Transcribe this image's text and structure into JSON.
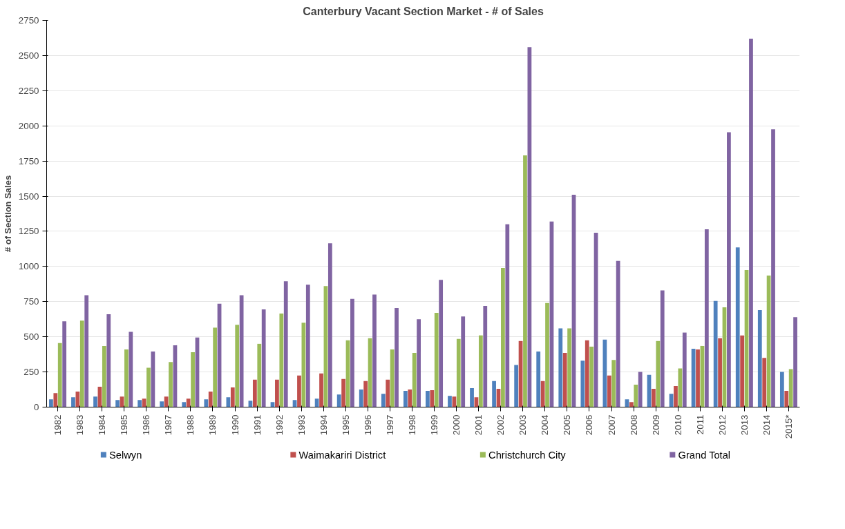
{
  "chart_data": {
    "type": "bar",
    "title": "Canterbury Vacant Section Market - # of Sales",
    "ylabel": "# of Section Sales",
    "categories": [
      "1982",
      "1983",
      "1984",
      "1985",
      "1986",
      "1987",
      "1988",
      "1989",
      "1990",
      "1991",
      "1992",
      "1993",
      "1994",
      "1995",
      "1996",
      "1997",
      "1998",
      "1999",
      "2000",
      "2001",
      "2002",
      "2003",
      "2004",
      "2005",
      "2006",
      "2007",
      "2008",
      "2009",
      "2010",
      "2011",
      "2012",
      "2013",
      "2014",
      "2015*"
    ],
    "series": [
      {
        "name": "Selwyn",
        "color": "#4f81bd",
        "values": [
          55,
          70,
          75,
          50,
          50,
          40,
          35,
          55,
          70,
          45,
          35,
          50,
          60,
          90,
          125,
          95,
          115,
          115,
          80,
          135,
          185,
          300,
          395,
          560,
          330,
          480,
          55,
          230,
          95,
          415,
          755,
          1135,
          690,
          250
        ]
      },
      {
        "name": "Waimakariri District",
        "color": "#c0504d",
        "values": [
          100,
          110,
          145,
          75,
          60,
          75,
          60,
          110,
          140,
          195,
          195,
          225,
          240,
          200,
          185,
          195,
          125,
          120,
          75,
          70,
          130,
          470,
          185,
          385,
          475,
          225,
          35,
          130,
          150,
          410,
          490,
          510,
          350,
          115
        ]
      },
      {
        "name": "Christchurch City",
        "color": "#9bbb59",
        "values": [
          455,
          615,
          435,
          410,
          280,
          320,
          390,
          565,
          585,
          450,
          665,
          600,
          860,
          475,
          490,
          410,
          385,
          670,
          485,
          510,
          990,
          1790,
          740,
          560,
          430,
          335,
          160,
          470,
          275,
          435,
          710,
          975,
          935,
          270
        ]
      },
      {
        "name": "Grand Total",
        "color": "#8064a2",
        "values": [
          610,
          795,
          660,
          535,
          395,
          440,
          495,
          735,
          795,
          695,
          895,
          870,
          1165,
          770,
          800,
          705,
          625,
          905,
          645,
          720,
          1300,
          2560,
          1320,
          1510,
          1240,
          1040,
          250,
          830,
          530,
          1265,
          1955,
          2620,
          1975,
          640
        ]
      }
    ],
    "ylim": [
      0,
      2750
    ],
    "yticks": [
      0,
      250,
      500,
      750,
      1000,
      1250,
      1500,
      1750,
      2000,
      2250,
      2500,
      2750
    ],
    "grid": "y",
    "legend": "bottom"
  }
}
